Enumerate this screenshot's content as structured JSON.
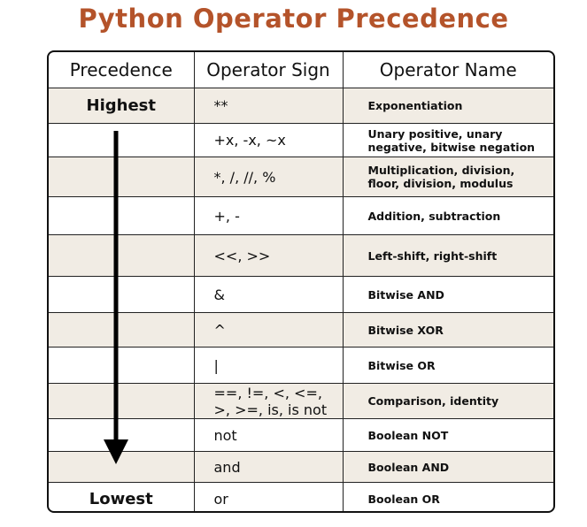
{
  "header": {
    "title": "Python Operator Precedence"
  },
  "table": {
    "columns": [
      "Precedence",
      "Operator Sign",
      "Operator Name"
    ],
    "rows": [
      {
        "precedence": "Highest",
        "operator": "**",
        "name": "Exponentiation"
      },
      {
        "operator": "+x, -x, ~x",
        "name": "Unary positive, unary negative, bitwise negation"
      },
      {
        "operator": "*, /, //, %",
        "name": "Multiplication, division, floor, division, modulus"
      },
      {
        "operator": "+, -",
        "name": "Addition, subtraction"
      },
      {
        "operator": "<<, >>",
        "name": "Left-shift, right-shift"
      },
      {
        "operator": "&",
        "name": "Bitwise AND"
      },
      {
        "operator": "^",
        "name": "Bitwise XOR"
      },
      {
        "operator": "|",
        "name": "Bitwise OR"
      },
      {
        "operator": "==, !=, <, <=, >, >=, is, is not",
        "name": "Comparison, identity"
      },
      {
        "operator": "not",
        "name": "Boolean NOT"
      },
      {
        "operator": "and",
        "name": "Boolean AND"
      },
      {
        "precedence": "Lowest",
        "operator": "or",
        "name": "Boolean OR"
      }
    ]
  }
}
